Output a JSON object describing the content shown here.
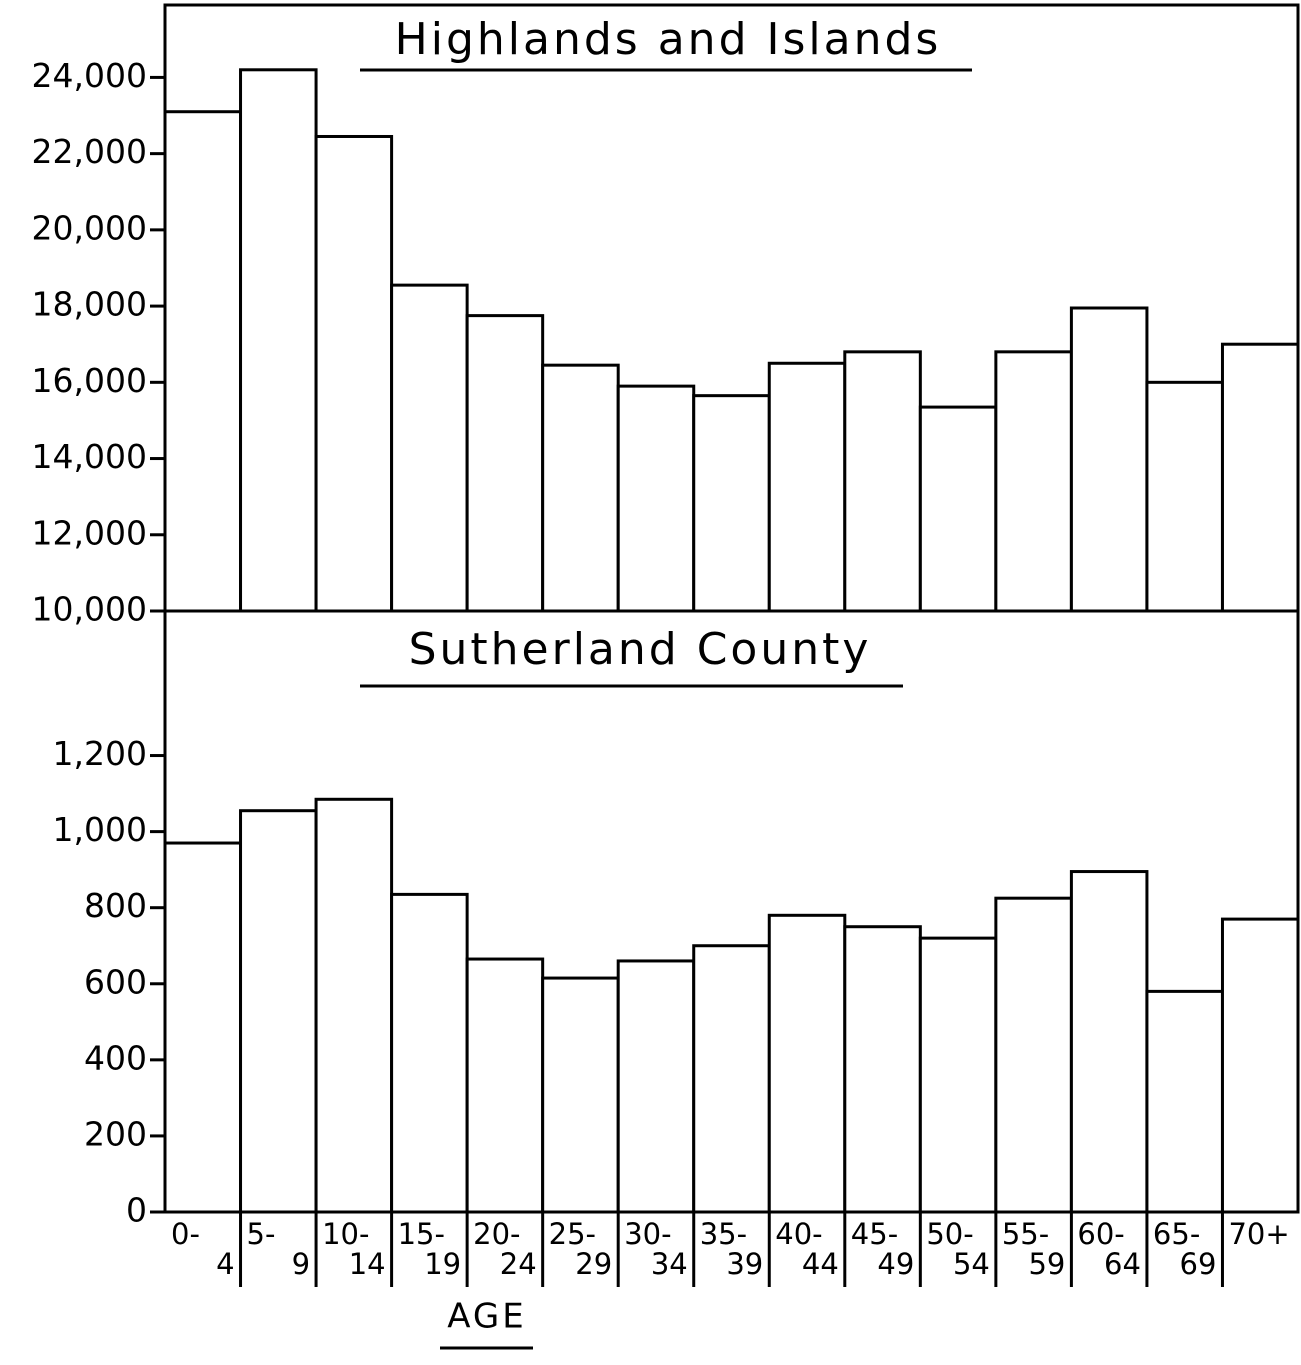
{
  "chart_data": [
    {
      "type": "bar",
      "title": "Highlands and Islands",
      "values": [
        23100,
        24200,
        22450,
        18550,
        17750,
        16450,
        15900,
        15650,
        16500,
        16800,
        15350,
        16800,
        17950,
        16000,
        17000
      ],
      "color": "#ffffff",
      "ylim": [
        10000,
        25900
      ],
      "yticks": [
        {
          "value": 10000,
          "label": "10,000"
        },
        {
          "value": 12000,
          "label": "12,000"
        },
        {
          "value": 14000,
          "label": "14,000"
        },
        {
          "value": 16000,
          "label": "16,000"
        },
        {
          "value": 18000,
          "label": "18,000"
        },
        {
          "value": 20000,
          "label": "20,000"
        },
        {
          "value": 22000,
          "label": "22,000"
        },
        {
          "value": 24000,
          "label": "24,000"
        }
      ]
    },
    {
      "type": "bar",
      "title": "Sutherland County",
      "xlabel": "AGE",
      "categories": [
        [
          "0-",
          "4"
        ],
        [
          "5-",
          "9"
        ],
        [
          "10-",
          "14"
        ],
        [
          "15-",
          "19"
        ],
        [
          "20-",
          "24"
        ],
        [
          "25-",
          "29"
        ],
        [
          "30-",
          "34"
        ],
        [
          "35-",
          "39"
        ],
        [
          "40-",
          "44"
        ],
        [
          "45-",
          "49"
        ],
        [
          "50-",
          "54"
        ],
        [
          "55-",
          "59"
        ],
        [
          "60-",
          "64"
        ],
        [
          "65-",
          "69"
        ],
        [
          "70+"
        ]
      ],
      "values": [
        970,
        1055,
        1085,
        835,
        665,
        615,
        660,
        700,
        780,
        750,
        720,
        825,
        895,
        580,
        770
      ],
      "color": "#ffffff",
      "ylim": [
        0,
        1580
      ],
      "yticks": [
        0,
        200,
        400,
        600,
        800,
        {
          "value": 1000,
          "label": "1,000"
        },
        {
          "value": 1200,
          "label": "1,200"
        }
      ]
    }
  ]
}
